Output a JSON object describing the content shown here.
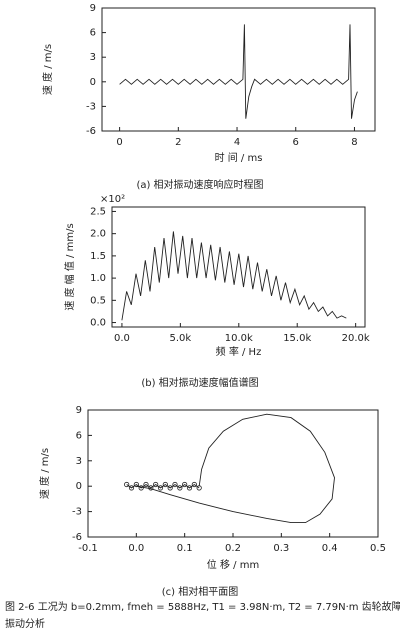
{
  "chart_data": [
    {
      "type": "line",
      "caption": "(a) 相对振动速度响应时程图",
      "xlabel": "时 间 / ms",
      "ylabel": "速 度 / m/s",
      "x": [
        0,
        0.2,
        0.4,
        0.6,
        0.8,
        1,
        1.2,
        1.4,
        1.6,
        1.8,
        2,
        2.2,
        2.4,
        2.6,
        2.8,
        3,
        3.2,
        3.4,
        3.6,
        3.8,
        4,
        4.2,
        4.25,
        4.3,
        4.4,
        4.5,
        4.6,
        4.8,
        5,
        5.2,
        5.4,
        5.6,
        5.8,
        6,
        6.2,
        6.4,
        6.6,
        6.8,
        7,
        7.2,
        7.4,
        7.6,
        7.8,
        7.85,
        7.9,
        8,
        8.1
      ],
      "series": [
        {
          "color": "#222222",
          "values": [
            -0.3,
            0.3,
            -0.3,
            0.3,
            -0.3,
            0.3,
            -0.3,
            0.3,
            -0.3,
            0.3,
            -0.3,
            0.3,
            -0.3,
            0.3,
            -0.3,
            0.3,
            -0.3,
            0.3,
            -0.3,
            0.3,
            -0.3,
            0.3,
            7,
            -4.5,
            -1.8,
            -0.6,
            0.3,
            -0.3,
            0.3,
            -0.3,
            0.3,
            -0.3,
            0.3,
            -0.3,
            0.3,
            -0.3,
            0.3,
            -0.3,
            0.3,
            -0.3,
            0.3,
            -0.3,
            0.3,
            7,
            -4.5,
            -2.2,
            -1.2
          ]
        }
      ],
      "xlim": [
        -0.6,
        8.7
      ],
      "xticks": [
        0,
        2,
        4,
        6,
        8
      ],
      "ylim": [
        -6,
        9
      ],
      "yticks": [
        9,
        6,
        3,
        0,
        -3,
        -6
      ]
    },
    {
      "type": "line",
      "caption": "(b) 相对振动速度幅值谱图",
      "xlabel": "频 率 / Hz",
      "ylabel": "速 度 幅 值 / mm/s",
      "multiplier": "×10²",
      "x": [
        0,
        400,
        800,
        1200,
        1600,
        2000,
        2400,
        2800,
        3200,
        3600,
        4000,
        4400,
        4800,
        5200,
        5600,
        6000,
        6400,
        6800,
        7200,
        7600,
        8000,
        8400,
        8800,
        9200,
        9600,
        10000,
        10400,
        10800,
        11200,
        11600,
        12000,
        12400,
        12800,
        13200,
        13600,
        14000,
        14400,
        14800,
        15200,
        15600,
        16000,
        16400,
        16800,
        17200,
        17600,
        18000,
        18400,
        18800,
        19200
      ],
      "series": [
        {
          "color": "#222222",
          "values": [
            0.05,
            0.7,
            0.4,
            1.1,
            0.6,
            1.4,
            0.7,
            1.7,
            0.9,
            1.9,
            1.0,
            2.05,
            1.1,
            1.95,
            1.0,
            1.9,
            1.0,
            1.8,
            1.0,
            1.75,
            0.95,
            1.7,
            0.9,
            1.6,
            0.85,
            1.55,
            0.8,
            1.5,
            0.75,
            1.35,
            0.7,
            1.2,
            0.6,
            1.05,
            0.5,
            0.9,
            0.45,
            0.75,
            0.4,
            0.6,
            0.3,
            0.45,
            0.25,
            0.35,
            0.15,
            0.25,
            0.1,
            0.15,
            0.1
          ]
        }
      ],
      "xlim": [
        -850,
        20800
      ],
      "xticks": [
        {
          "value": 0,
          "label": "0.0"
        },
        {
          "value": 5000,
          "label": "5.0k"
        },
        {
          "value": 10000,
          "label": "10.0k"
        },
        {
          "value": 15000,
          "label": "15.0k"
        },
        {
          "value": 20000,
          "label": "20.0k"
        }
      ],
      "ylim": [
        -0.1,
        2.6
      ],
      "yticks": [
        {
          "value": 0,
          "label": "0.0"
        },
        0.5,
        {
          "value": 1,
          "label": "1.0"
        },
        1.5,
        {
          "value": 2,
          "label": "2.0"
        },
        2.5
      ]
    },
    {
      "type": "line",
      "caption": "(c) 相对相平面图",
      "xlabel": "位 移 / mm",
      "ylabel": "速 度 / m/s",
      "series": [
        {
          "color": "#222222",
          "marker": true,
          "x": [
            -0.02,
            -0.01,
            0,
            0.01,
            0.02,
            0.03,
            0.04,
            0.05,
            0.06,
            0.07,
            0.08,
            0.09,
            0.1,
            0.11,
            0.12,
            0.13
          ],
          "values": [
            0.2,
            -0.2,
            0.2,
            -0.2,
            0.2,
            -0.2,
            0.2,
            -0.2,
            0.2,
            -0.2,
            0.2,
            -0.2,
            0.2,
            -0.2,
            0.2,
            -0.2
          ]
        },
        {
          "color": "#222222",
          "x": [
            0.13,
            0.135,
            0.15,
            0.18,
            0.22,
            0.27,
            0.32,
            0.36,
            0.39,
            0.41,
            0.405,
            0.38,
            0.35,
            0.32,
            0.27,
            0.2,
            0.13,
            0.07,
            0.03,
            0
          ],
          "values": [
            0,
            2,
            4.5,
            6.5,
            7.9,
            8.5,
            8.1,
            6.5,
            4,
            1,
            -1.5,
            -3.3,
            -4.3,
            -4.3,
            -3.8,
            -3,
            -2,
            -1,
            -0.3,
            0
          ]
        }
      ],
      "xlim": [
        -0.1,
        0.5
      ],
      "xticks": [
        -0.1,
        {
          "value": 0,
          "label": "0.0"
        },
        0.1,
        0.2,
        0.3,
        0.4,
        0.5
      ],
      "ylim": [
        -6,
        9
      ],
      "yticks": [
        9,
        6,
        3,
        0,
        -3,
        -6
      ]
    }
  ],
  "figure_caption": [
    "图 2-6 工况为 b=0.2mm, fmeh = 5888Hz, T1 = 3.98N·m, T2 = 7.79N·m 齿轮故障",
    "振动分析"
  ]
}
